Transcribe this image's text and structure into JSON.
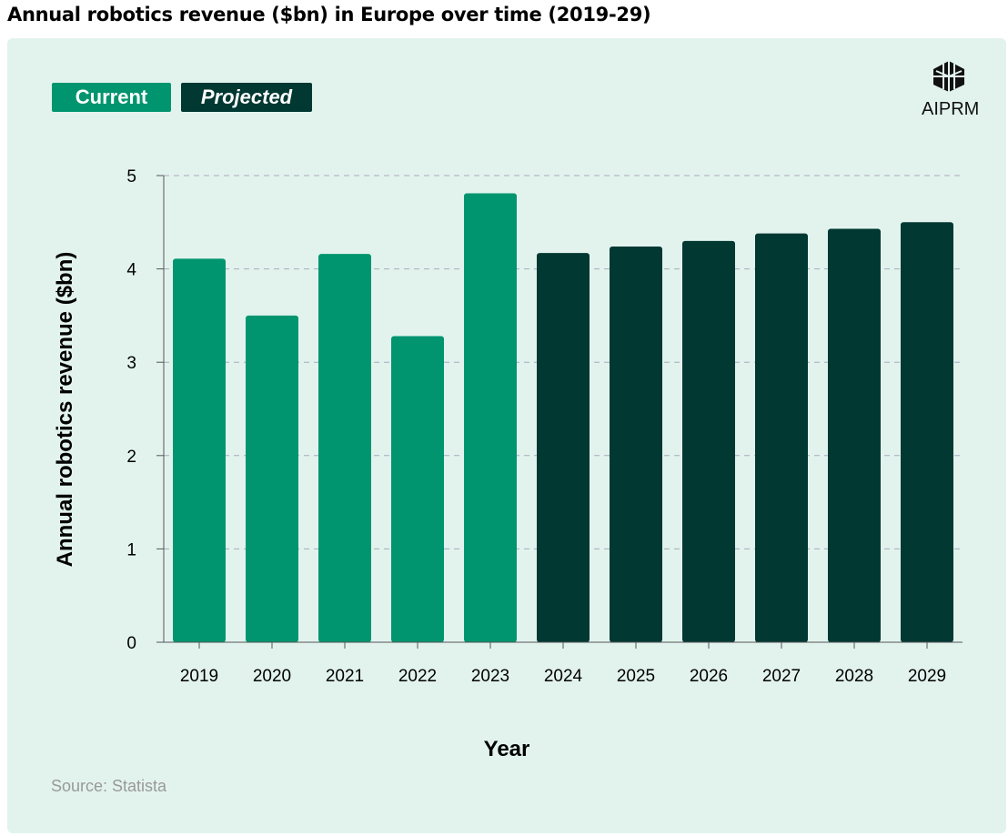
{
  "title": "Annual robotics revenue ($bn) in Europe over time (2019-29)",
  "legend": {
    "current": "Current",
    "projected": "Projected"
  },
  "logo": "AIPRM",
  "source": "Source: Statista",
  "colors": {
    "current": "#00956e",
    "projected": "#013832",
    "background": "#e2f3ee"
  },
  "chart_data": {
    "type": "bar",
    "title": "Annual robotics revenue ($bn) in Europe over time (2019-29)",
    "xlabel": "Year",
    "ylabel": "Annual robotics revenue ($bn)",
    "ylim": [
      0,
      5
    ],
    "yticks": [
      0,
      1,
      2,
      3,
      4,
      5
    ],
    "categories": [
      "2019",
      "2020",
      "2021",
      "2022",
      "2023",
      "2024",
      "2025",
      "2026",
      "2027",
      "2028",
      "2029"
    ],
    "values": [
      4.11,
      3.5,
      4.16,
      3.28,
      4.81,
      4.17,
      4.24,
      4.3,
      4.38,
      4.43,
      4.5
    ],
    "series_type": [
      "Current",
      "Current",
      "Current",
      "Current",
      "Current",
      "Projected",
      "Projected",
      "Projected",
      "Projected",
      "Projected",
      "Projected"
    ],
    "grid": "horizontal dashed",
    "legend_position": "top-left"
  }
}
